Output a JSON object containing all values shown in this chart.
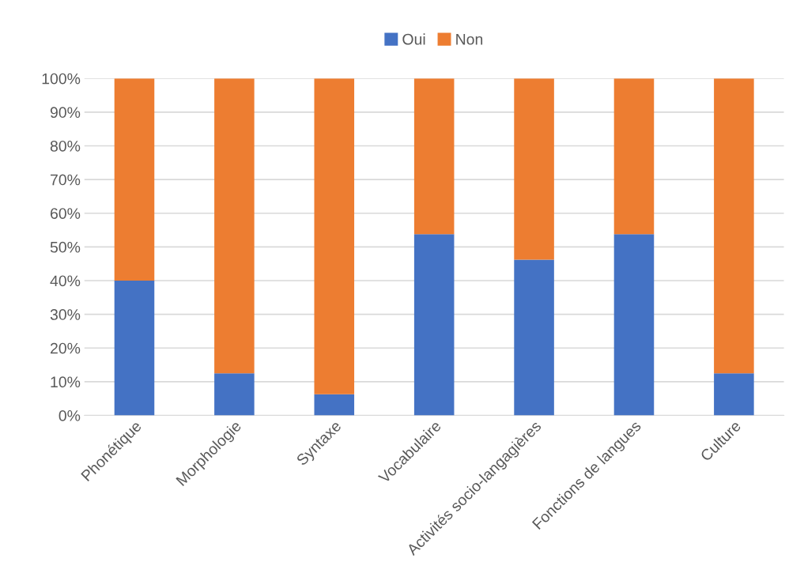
{
  "chart_data": {
    "type": "bar",
    "stacked": true,
    "categories": [
      "Phonétique",
      "Morphologie",
      "Syntaxe",
      "Vocabulaire",
      "Activités socio-langagières",
      "Fonctions de langues",
      "Culture"
    ],
    "series": [
      {
        "name": "Oui",
        "color": "#4472c4",
        "values": [
          40,
          12.5,
          6.3,
          53.8,
          46.2,
          53.8,
          12.5
        ]
      },
      {
        "name": "Non",
        "color": "#ed7d31",
        "values": [
          60,
          87.5,
          93.7,
          46.2,
          53.8,
          46.2,
          87.5
        ]
      }
    ],
    "ylim": [
      0,
      100
    ],
    "yticks": [
      {
        "value": 0,
        "label": "0%"
      },
      {
        "value": 10,
        "label": "10%"
      },
      {
        "value": 20,
        "label": "20%"
      },
      {
        "value": 30,
        "label": "30%"
      },
      {
        "value": 40,
        "label": "40%"
      },
      {
        "value": 50,
        "label": "50%"
      },
      {
        "value": 60,
        "label": "60%"
      },
      {
        "value": 70,
        "label": "70%"
      },
      {
        "value": 80,
        "label": "80%"
      },
      {
        "value": 90,
        "label": "90%"
      },
      {
        "value": 100,
        "label": "100%"
      }
    ],
    "grid": "y",
    "legend": "top"
  }
}
